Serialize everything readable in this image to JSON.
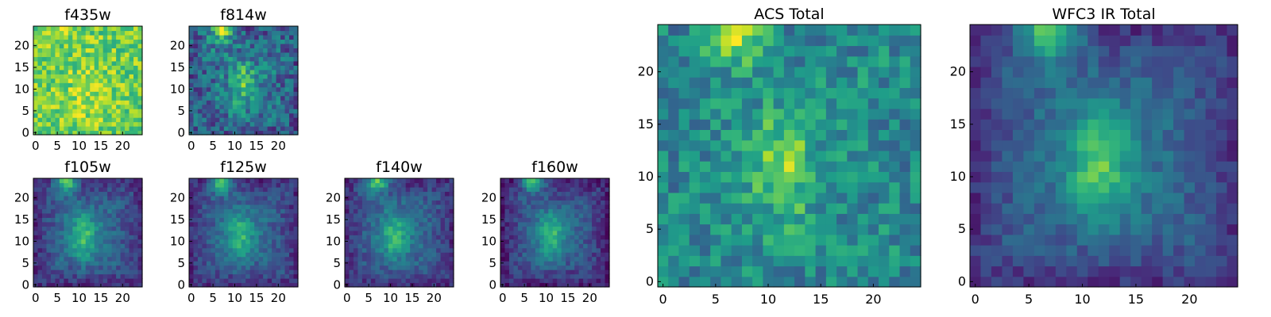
{
  "figure": {
    "colormap": "viridis",
    "colors": {
      "low": "#440154",
      "mid": "#21918c",
      "high": "#fde725"
    }
  },
  "chart_data": [
    {
      "id": "f435w",
      "type": "heatmap",
      "title": "f435w",
      "grid_size": 25,
      "xticks": [
        "0",
        "5",
        "10",
        "15",
        "20"
      ],
      "yticks": [
        "0",
        "5",
        "10",
        "15",
        "20"
      ],
      "xlim": [
        -0.5,
        24.5
      ],
      "ylim": [
        -0.5,
        24.5
      ],
      "blob": {
        "cx": 12,
        "cy": 8,
        "rx": 5,
        "ry": 7,
        "amp": 0.1
      },
      "source": {
        "cx": 7,
        "cy": 24,
        "r": 2.5,
        "amp": 0.15
      },
      "background": 0.78,
      "noise": 0.18,
      "falloff": 0.0
    },
    {
      "id": "f814w",
      "type": "heatmap",
      "title": "f814w",
      "grid_size": 25,
      "xticks": [
        "0",
        "5",
        "10",
        "15",
        "20"
      ],
      "yticks": [
        "0",
        "5",
        "10",
        "15",
        "20"
      ],
      "xlim": [
        -0.5,
        24.5
      ],
      "ylim": [
        -0.5,
        24.5
      ],
      "blob": {
        "cx": 12,
        "cy": 11,
        "rx": 2.5,
        "ry": 5,
        "amp": 0.32
      },
      "source": {
        "cx": 7,
        "cy": 24,
        "r": 2.8,
        "amp": 0.6
      },
      "background": 0.42,
      "noise": 0.2,
      "falloff": 0.15
    },
    {
      "id": "f105w",
      "type": "heatmap",
      "title": "f105w",
      "grid_size": 25,
      "xticks": [
        "0",
        "5",
        "10",
        "15",
        "20"
      ],
      "yticks": [
        "0",
        "5",
        "10",
        "15",
        "20"
      ],
      "xlim": [
        -0.5,
        24.5
      ],
      "ylim": [
        -0.5,
        24.5
      ],
      "blob": {
        "cx": 11,
        "cy": 11,
        "rx": 3,
        "ry": 5.5,
        "amp": 0.32
      },
      "source": {
        "cx": 7,
        "cy": 24,
        "r": 2.6,
        "amp": 0.62
      },
      "background": 0.38,
      "noise": 0.1,
      "falloff": 0.25
    },
    {
      "id": "f125w",
      "type": "heatmap",
      "title": "f125w",
      "grid_size": 25,
      "xticks": [
        "0",
        "5",
        "10",
        "15",
        "20"
      ],
      "yticks": [
        "0",
        "5",
        "10",
        "15",
        "20"
      ],
      "xlim": [
        -0.5,
        24.5
      ],
      "ylim": [
        -0.5,
        24.5
      ],
      "blob": {
        "cx": 11,
        "cy": 11,
        "rx": 3,
        "ry": 5.5,
        "amp": 0.3
      },
      "source": {
        "cx": 7,
        "cy": 24,
        "r": 2.6,
        "amp": 0.62
      },
      "background": 0.38,
      "noise": 0.1,
      "falloff": 0.25
    },
    {
      "id": "f140w",
      "type": "heatmap",
      "title": "f140w",
      "grid_size": 25,
      "xticks": [
        "0",
        "5",
        "10",
        "15",
        "20"
      ],
      "yticks": [
        "0",
        "5",
        "10",
        "15",
        "20"
      ],
      "xlim": [
        -0.5,
        24.5
      ],
      "ylim": [
        -0.5,
        24.5
      ],
      "blob": {
        "cx": 11,
        "cy": 11,
        "rx": 3,
        "ry": 5.5,
        "amp": 0.3
      },
      "source": {
        "cx": 7,
        "cy": 24,
        "r": 2.6,
        "amp": 0.62
      },
      "background": 0.38,
      "noise": 0.1,
      "falloff": 0.25
    },
    {
      "id": "f160w",
      "type": "heatmap",
      "title": "f160w",
      "grid_size": 25,
      "xticks": [
        "0",
        "5",
        "10",
        "15",
        "20"
      ],
      "yticks": [
        "0",
        "5",
        "10",
        "15",
        "20"
      ],
      "xlim": [
        -0.5,
        24.5
      ],
      "ylim": [
        -0.5,
        24.5
      ],
      "blob": {
        "cx": 11,
        "cy": 11,
        "rx": 3,
        "ry": 5.5,
        "amp": 0.32
      },
      "source": {
        "cx": 7,
        "cy": 24,
        "r": 2.6,
        "amp": 0.62
      },
      "background": 0.36,
      "noise": 0.1,
      "falloff": 0.28
    },
    {
      "id": "acs-total",
      "type": "heatmap",
      "title": "ACS Total",
      "grid_size": 25,
      "xticks": [
        "0",
        "5",
        "10",
        "15",
        "20"
      ],
      "yticks": [
        "0",
        "5",
        "10",
        "15",
        "20"
      ],
      "xlim": [
        -0.5,
        24.5
      ],
      "ylim": [
        -0.5,
        24.5
      ],
      "blob": {
        "cx": 11.5,
        "cy": 11,
        "rx": 2.8,
        "ry": 5.5,
        "amp": 0.3
      },
      "source": {
        "cx": 7,
        "cy": 24,
        "r": 2.8,
        "amp": 0.5
      },
      "background": 0.5,
      "noise": 0.17,
      "falloff": 0.05
    },
    {
      "id": "wfc3-ir-total",
      "type": "heatmap",
      "title": "WFC3 IR Total",
      "grid_size": 25,
      "xticks": [
        "0",
        "5",
        "10",
        "15",
        "20"
      ],
      "yticks": [
        "0",
        "5",
        "10",
        "15",
        "20"
      ],
      "xlim": [
        -0.5,
        24.5
      ],
      "ylim": [
        -0.5,
        24.5
      ],
      "blob": {
        "cx": 11.5,
        "cy": 11,
        "rx": 2.8,
        "ry": 5.5,
        "amp": 0.35
      },
      "source": {
        "cx": 7,
        "cy": 24,
        "r": 2.8,
        "amp": 0.6
      },
      "background": 0.4,
      "noise": 0.09,
      "falloff": 0.25
    }
  ]
}
